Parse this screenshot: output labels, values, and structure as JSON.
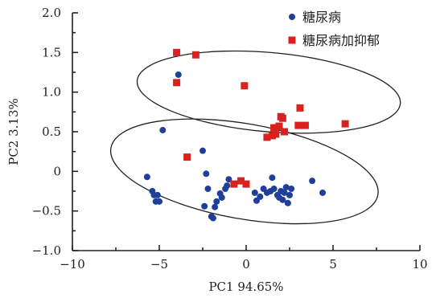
{
  "chart_data": {
    "type": "scatter",
    "xlabel": "PC1 94.65%",
    "ylabel": "PC2 3.13%",
    "xlim": [
      -10,
      10
    ],
    "ylim": [
      -1.0,
      2.0
    ],
    "x_ticks": [
      -10,
      -5,
      0,
      5,
      10
    ],
    "y_ticks": [
      -1.0,
      -0.5,
      0,
      0.5,
      1.0,
      1.5,
      2.0
    ],
    "x_tick_labels": [
      "−10",
      "−5",
      "0",
      "5",
      "10"
    ],
    "y_tick_labels": [
      "−1.0",
      "−0.5",
      "0",
      "0.5",
      "1.0",
      "1.5",
      "2.0"
    ],
    "grid": false,
    "legend_position": "top-right",
    "series": [
      {
        "name": "糖尿病",
        "marker": "circle",
        "color": "#1f3f9a",
        "points": [
          [
            -5.7,
            -0.07
          ],
          [
            -5.4,
            -0.25
          ],
          [
            -5.3,
            -0.3
          ],
          [
            -5.2,
            -0.38
          ],
          [
            -5.0,
            -0.38
          ],
          [
            -5.1,
            -0.3
          ],
          [
            -4.8,
            0.52
          ],
          [
            -3.9,
            1.22
          ],
          [
            -2.5,
            0.26
          ],
          [
            -2.3,
            -0.03
          ],
          [
            -2.2,
            -0.22
          ],
          [
            -2.4,
            -0.44
          ],
          [
            -2.0,
            -0.57
          ],
          [
            -1.9,
            -0.59
          ],
          [
            -1.7,
            -0.38
          ],
          [
            -1.8,
            -0.45
          ],
          [
            -1.5,
            -0.28
          ],
          [
            -1.4,
            -0.33
          ],
          [
            -1.2,
            -0.22
          ],
          [
            -1.1,
            -0.18
          ],
          [
            -1.0,
            -0.1
          ],
          [
            0.5,
            -0.27
          ],
          [
            0.6,
            -0.37
          ],
          [
            0.8,
            -0.32
          ],
          [
            1.0,
            -0.22
          ],
          [
            1.2,
            -0.27
          ],
          [
            1.4,
            -0.25
          ],
          [
            1.5,
            -0.08
          ],
          [
            1.6,
            -0.22
          ],
          [
            1.8,
            -0.3
          ],
          [
            1.9,
            -0.33
          ],
          [
            2.0,
            -0.25
          ],
          [
            2.1,
            -0.36
          ],
          [
            2.2,
            -0.27
          ],
          [
            2.3,
            -0.2
          ],
          [
            2.4,
            -0.4
          ],
          [
            2.5,
            -0.3
          ],
          [
            2.6,
            -0.22
          ],
          [
            3.8,
            -0.12
          ],
          [
            4.4,
            -0.27
          ]
        ]
      },
      {
        "name": "糖尿病加抑郁",
        "marker": "square",
        "color": "#d9221d",
        "points": [
          [
            -4.0,
            1.5
          ],
          [
            -2.9,
            1.47
          ],
          [
            -4.0,
            1.12
          ],
          [
            -0.1,
            1.08
          ],
          [
            -3.4,
            0.18
          ],
          [
            -0.7,
            -0.16
          ],
          [
            -0.3,
            -0.12
          ],
          [
            0.0,
            -0.16
          ],
          [
            1.2,
            0.43
          ],
          [
            1.5,
            0.45
          ],
          [
            1.6,
            0.55
          ],
          [
            1.7,
            0.47
          ],
          [
            1.9,
            0.57
          ],
          [
            2.0,
            0.69
          ],
          [
            2.1,
            0.67
          ],
          [
            2.2,
            0.5
          ],
          [
            3.0,
            0.58
          ],
          [
            3.1,
            0.8
          ],
          [
            3.4,
            0.58
          ],
          [
            5.7,
            0.6
          ]
        ]
      }
    ],
    "ellipses": [
      {
        "cx": 1.3,
        "cy": 1.0,
        "rx": 7.6,
        "ry": 0.5,
        "angle": 5
      },
      {
        "cx": -0.1,
        "cy": 0.0,
        "rx": 7.8,
        "ry": 0.6,
        "angle": 10
      }
    ]
  }
}
